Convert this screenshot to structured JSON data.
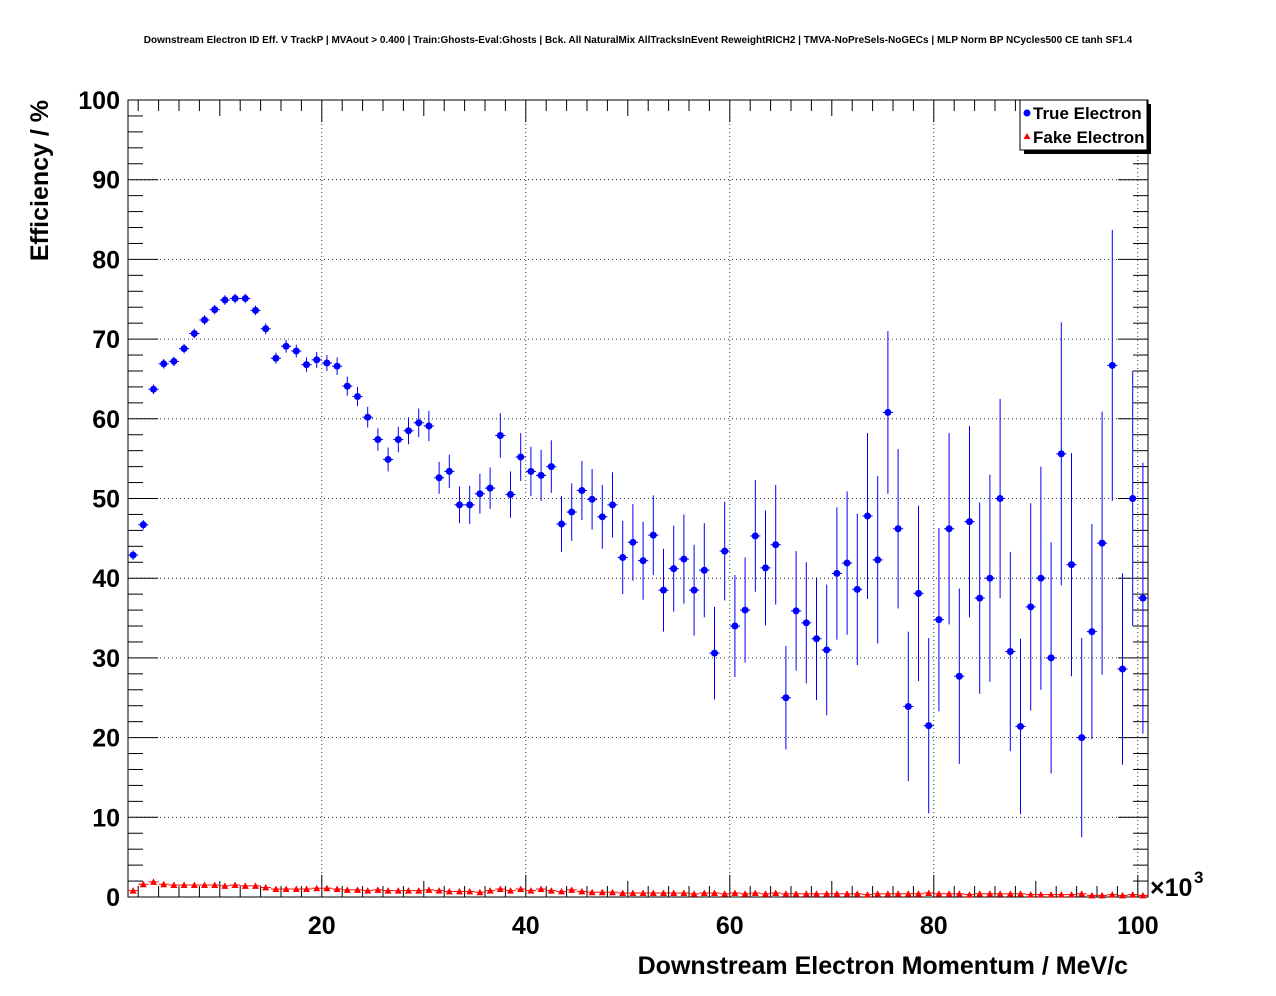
{
  "chart_data": {
    "type": "scatter",
    "title": "Downstream Electron ID Eff. V TrackP | MVAout > 0.400 | Train:Ghosts-Eval:Ghosts | Bck. All NaturalMix AllTracksInEvent ReweightRICH2 | TMVA-NoPreSels-NoGECs | MLP Norm BP NCycles500 CE tanh SF1.4",
    "xlabel": "Downstream Electron Momentum / MeV/c",
    "ylabel": "Efficiency / %",
    "x_multiplier_label": "×10",
    "x_multiplier_exp": "3",
    "xlim": [
      1,
      101
    ],
    "ylim": [
      0,
      100
    ],
    "x_ticks": [
      20,
      40,
      60,
      80,
      100
    ],
    "y_ticks": [
      0,
      10,
      20,
      30,
      40,
      50,
      60,
      70,
      80,
      90,
      100
    ],
    "grid": true,
    "legend_position": "top-right",
    "colors": {
      "true_electron": "#0000ff",
      "fake_electron": "#ff0000",
      "axis": "#000000",
      "grid": "#000000"
    },
    "series": [
      {
        "name": "True Electron",
        "marker": "circle",
        "x": [
          1.5,
          2.5,
          3.5,
          4.5,
          5.5,
          6.5,
          7.5,
          8.5,
          9.5,
          10.5,
          11.5,
          12.5,
          13.5,
          14.5,
          15.5,
          16.5,
          17.5,
          18.5,
          19.5,
          20.5,
          21.5,
          22.5,
          23.5,
          24.5,
          25.5,
          26.5,
          27.5,
          28.5,
          29.5,
          30.5,
          31.5,
          32.5,
          33.5,
          34.5,
          35.5,
          36.5,
          37.5,
          38.5,
          39.5,
          40.5,
          41.5,
          42.5,
          43.5,
          44.5,
          45.5,
          46.5,
          47.5,
          48.5,
          49.5,
          50.5,
          51.5,
          52.5,
          53.5,
          54.5,
          55.5,
          56.5,
          57.5,
          58.5,
          59.5,
          60.5,
          61.5,
          62.5,
          63.5,
          64.5,
          65.5,
          66.5,
          67.5,
          68.5,
          69.5,
          70.5,
          71.5,
          72.5,
          73.5,
          74.5,
          75.5,
          76.5,
          77.5,
          78.5,
          79.5,
          80.5,
          81.5,
          82.5,
          83.5,
          84.5,
          85.5,
          86.5,
          87.5,
          88.5,
          89.5,
          90.5,
          91.5,
          92.5,
          93.5,
          94.5,
          95.5,
          96.5,
          97.5,
          98.5,
          99.5,
          100.5
        ],
        "y": [
          42.9,
          46.7,
          63.7,
          66.9,
          67.2,
          68.8,
          70.7,
          72.4,
          73.7,
          74.9,
          75.1,
          75.1,
          73.6,
          71.3,
          67.6,
          69.1,
          68.5,
          66.8,
          67.4,
          67.0,
          66.6,
          64.1,
          62.8,
          60.2,
          57.4,
          54.9,
          57.4,
          58.5,
          59.5,
          59.1,
          52.6,
          53.4,
          49.2,
          49.2,
          50.6,
          51.3,
          57.9,
          50.5,
          55.2,
          53.4,
          52.9,
          54.0,
          46.8,
          48.3,
          51.0,
          49.9,
          47.7,
          49.2,
          42.6,
          44.5,
          42.2,
          45.4,
          38.5,
          41.2,
          42.4,
          38.5,
          41.0,
          30.6,
          43.4,
          34.0,
          36.0,
          45.3,
          41.3,
          44.2,
          25.0,
          35.9,
          34.4,
          32.4,
          31.0,
          40.6,
          41.9,
          38.6,
          47.8,
          42.3,
          60.8,
          46.2,
          23.9,
          38.1,
          21.5,
          34.8,
          46.2,
          27.7,
          47.1,
          37.5,
          40.0,
          50.0,
          30.8,
          21.4,
          36.4,
          40.0,
          30.0,
          55.6,
          41.7,
          20.0,
          33.3,
          44.4,
          66.7,
          28.6,
          50.0,
          37.5
        ],
        "yerr": [
          0.6,
          0.6,
          0.6,
          0.6,
          0.6,
          0.6,
          0.6,
          0.6,
          0.6,
          0.6,
          0.6,
          0.6,
          0.6,
          0.7,
          0.7,
          0.8,
          0.8,
          0.9,
          1.0,
          1.0,
          1.1,
          1.2,
          1.2,
          1.3,
          1.4,
          1.5,
          1.6,
          1.7,
          1.8,
          1.9,
          2.0,
          2.1,
          2.3,
          2.4,
          2.5,
          2.6,
          2.8,
          2.9,
          3.0,
          3.1,
          3.2,
          3.3,
          3.5,
          3.6,
          3.7,
          3.8,
          4.0,
          4.1,
          4.6,
          4.8,
          4.9,
          5.0,
          5.2,
          5.4,
          5.6,
          5.7,
          5.9,
          5.8,
          6.2,
          6.4,
          6.6,
          7.0,
          7.2,
          7.5,
          6.5,
          7.5,
          7.6,
          7.7,
          8.2,
          8.3,
          9.0,
          9.5,
          10.4,
          10.5,
          10.2,
          10.0,
          9.4,
          11.0,
          11.0,
          11.5,
          12.0,
          11.0,
          12.0,
          12.0,
          13.0,
          12.5,
          12.5,
          11.0,
          13.0,
          14.0,
          14.5,
          16.5,
          14.0,
          12.5,
          13.5,
          16.5,
          17.0,
          12.0,
          16.0,
          17.0
        ]
      },
      {
        "name": "Fake Electron",
        "marker": "triangle",
        "x": [
          1.5,
          2.5,
          3.5,
          4.5,
          5.5,
          6.5,
          7.5,
          8.5,
          9.5,
          10.5,
          11.5,
          12.5,
          13.5,
          14.5,
          15.5,
          16.5,
          17.5,
          18.5,
          19.5,
          20.5,
          21.5,
          22.5,
          23.5,
          24.5,
          25.5,
          26.5,
          27.5,
          28.5,
          29.5,
          30.5,
          31.5,
          32.5,
          33.5,
          34.5,
          35.5,
          36.5,
          37.5,
          38.5,
          39.5,
          40.5,
          41.5,
          42.5,
          43.5,
          44.5,
          45.5,
          46.5,
          47.5,
          48.5,
          49.5,
          50.5,
          51.5,
          52.5,
          53.5,
          54.5,
          55.5,
          56.5,
          57.5,
          58.5,
          59.5,
          60.5,
          61.5,
          62.5,
          63.5,
          64.5,
          65.5,
          66.5,
          67.5,
          68.5,
          69.5,
          70.5,
          71.5,
          72.5,
          73.5,
          74.5,
          75.5,
          76.5,
          77.5,
          78.5,
          79.5,
          80.5,
          81.5,
          82.5,
          83.5,
          84.5,
          85.5,
          86.5,
          87.5,
          88.5,
          89.5,
          90.5,
          91.5,
          92.5,
          93.5,
          94.5,
          95.5,
          96.5,
          97.5,
          98.5,
          99.5,
          100.5
        ],
        "y": [
          0.8,
          1.6,
          1.9,
          1.6,
          1.5,
          1.5,
          1.5,
          1.5,
          1.5,
          1.4,
          1.5,
          1.4,
          1.4,
          1.2,
          1.0,
          1.0,
          1.0,
          1.0,
          1.1,
          1.1,
          1.0,
          0.9,
          0.9,
          0.8,
          0.9,
          0.8,
          0.8,
          0.8,
          0.8,
          0.9,
          0.8,
          0.7,
          0.7,
          0.7,
          0.6,
          0.8,
          1.0,
          0.8,
          1.0,
          0.8,
          1.0,
          0.8,
          0.7,
          0.9,
          0.7,
          0.6,
          0.6,
          0.6,
          0.5,
          0.5,
          0.5,
          0.5,
          0.5,
          0.5,
          0.5,
          0.4,
          0.5,
          0.5,
          0.4,
          0.5,
          0.4,
          0.5,
          0.4,
          0.5,
          0.4,
          0.4,
          0.4,
          0.4,
          0.4,
          0.4,
          0.4,
          0.4,
          0.3,
          0.4,
          0.4,
          0.4,
          0.4,
          0.4,
          0.5,
          0.4,
          0.4,
          0.4,
          0.3,
          0.4,
          0.4,
          0.4,
          0.4,
          0.4,
          0.3,
          0.3,
          0.3,
          0.3,
          0.3,
          0.4,
          0.2,
          0.2,
          0.3,
          0.2,
          0.3,
          0.2
        ],
        "yerr": [
          0.1,
          0.1,
          0.1,
          0.1,
          0.1,
          0.1,
          0.1,
          0.1,
          0.1,
          0.1,
          0.1,
          0.1,
          0.1,
          0.1,
          0.1,
          0.1,
          0.1,
          0.1,
          0.1,
          0.1,
          0.1,
          0.1,
          0.1,
          0.1,
          0.1,
          0.1,
          0.1,
          0.1,
          0.1,
          0.1,
          0.1,
          0.1,
          0.1,
          0.1,
          0.1,
          0.1,
          0.1,
          0.1,
          0.1,
          0.1,
          0.1,
          0.1,
          0.1,
          0.1,
          0.1,
          0.1,
          0.1,
          0.1,
          0.1,
          0.1,
          0.1,
          0.1,
          0.1,
          0.1,
          0.1,
          0.1,
          0.1,
          0.1,
          0.1,
          0.1,
          0.1,
          0.1,
          0.1,
          0.1,
          0.1,
          0.1,
          0.1,
          0.1,
          0.1,
          0.1,
          0.1,
          0.1,
          0.1,
          0.1,
          0.1,
          0.1,
          0.1,
          0.1,
          0.1,
          0.1,
          0.1,
          0.1,
          0.1,
          0.1,
          0.1,
          0.1,
          0.1,
          0.1,
          0.1,
          0.1,
          0.1,
          0.1,
          0.1,
          0.1,
          0.1,
          0.1,
          0.1,
          0.1,
          0.1,
          0.1
        ]
      }
    ]
  }
}
